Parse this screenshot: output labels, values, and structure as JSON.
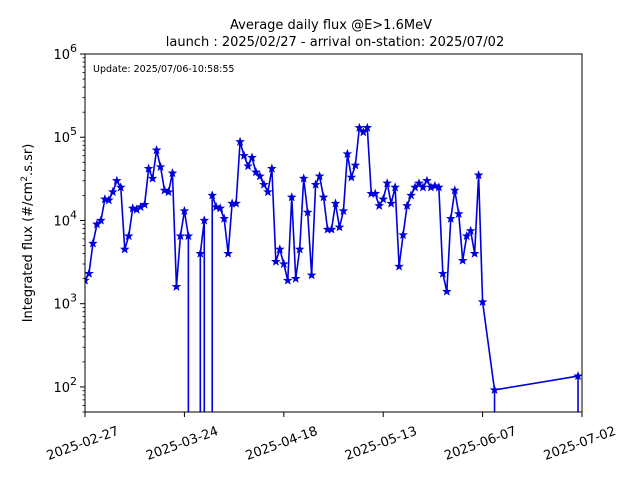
{
  "chart_data": {
    "type": "line",
    "title": "Average daily flux @E>1.6MeV",
    "subtitle": "launch : 2025/02/27 - arrival on-station: 2025/07/02",
    "ylabel_prefix": "Integrated flux (#/cm",
    "ylabel_sup": "2",
    "ylabel_suffix": ".s.sr)",
    "annotation": "Update: 2025/07/06-10:58:55",
    "y_scale": "log",
    "ylim": [
      50,
      1000000
    ],
    "xlim": [
      "2025-02-27",
      "2025-07-02"
    ],
    "x_ticks": [
      "2025-02-27",
      "2025-03-24",
      "2025-04-18",
      "2025-05-13",
      "2025-06-07",
      "2025-07-02"
    ],
    "y_ticks": [
      {
        "value": 100,
        "base": "10",
        "exp": "2"
      },
      {
        "value": 1000,
        "base": "10",
        "exp": "3"
      },
      {
        "value": 10000,
        "base": "10",
        "exp": "4"
      },
      {
        "value": 100000,
        "base": "10",
        "exp": "5"
      },
      {
        "value": 1000000,
        "base": "10",
        "exp": "6"
      }
    ],
    "line_color": "#0000dd",
    "series": [
      {
        "x": [
          "2025-02-27",
          "2025-02-28",
          "2025-03-01",
          "2025-03-02",
          "2025-03-03",
          "2025-03-04",
          "2025-03-05",
          "2025-03-06",
          "2025-03-07",
          "2025-03-08",
          "2025-03-09",
          "2025-03-10",
          "2025-03-11",
          "2025-03-12",
          "2025-03-13",
          "2025-03-14",
          "2025-03-15",
          "2025-03-16",
          "2025-03-17",
          "2025-03-18",
          "2025-03-19",
          "2025-03-20",
          "2025-03-21",
          "2025-03-22",
          "2025-03-23",
          "2025-03-24",
          "2025-03-25",
          "2025-03-26",
          "2025-03-27",
          "2025-03-28",
          "2025-03-29",
          "2025-03-30",
          "2025-03-31",
          "2025-04-01",
          "2025-04-02",
          "2025-04-03",
          "2025-04-04",
          "2025-04-05",
          "2025-04-06",
          "2025-04-07",
          "2025-04-08",
          "2025-04-09",
          "2025-04-10",
          "2025-04-11",
          "2025-04-12",
          "2025-04-13",
          "2025-04-14",
          "2025-04-15",
          "2025-04-16",
          "2025-04-17",
          "2025-04-18",
          "2025-04-19",
          "2025-04-20",
          "2025-04-21",
          "2025-04-22",
          "2025-04-23",
          "2025-04-24",
          "2025-04-25",
          "2025-04-26",
          "2025-04-27",
          "2025-04-28",
          "2025-04-29",
          "2025-04-30",
          "2025-05-01",
          "2025-05-02",
          "2025-05-03",
          "2025-05-04",
          "2025-05-05",
          "2025-05-06",
          "2025-05-07",
          "2025-05-08",
          "2025-05-09",
          "2025-05-10",
          "2025-05-11",
          "2025-05-12",
          "2025-05-13",
          "2025-05-14",
          "2025-05-15",
          "2025-05-16",
          "2025-05-17",
          "2025-05-18",
          "2025-05-19",
          "2025-05-20",
          "2025-05-21",
          "2025-05-22",
          "2025-05-23",
          "2025-05-24",
          "2025-05-25",
          "2025-05-26",
          "2025-05-27",
          "2025-05-28",
          "2025-05-29",
          "2025-05-30",
          "2025-05-31",
          "2025-06-01",
          "2025-06-02",
          "2025-06-03",
          "2025-06-04",
          "2025-06-05",
          "2025-06-06",
          "2025-06-07",
          "2025-06-10",
          "2025-07-01"
        ],
        "y": [
          1900,
          2300,
          5300,
          9000,
          10000,
          18000,
          17500,
          22000,
          30000,
          25000,
          4500,
          6500,
          14000,
          13500,
          14500,
          15500,
          42000,
          32000,
          70000,
          44000,
          23000,
          22000,
          37000,
          1600,
          6500,
          13000,
          6500,
          null,
          null,
          4000,
          10000,
          null,
          20000,
          14500,
          14000,
          10500,
          4000,
          16000,
          16000,
          88000,
          60000,
          45000,
          57000,
          38000,
          34000,
          27000,
          22000,
          42000,
          3200,
          4500,
          3000,
          1900,
          19000,
          2000,
          4500,
          32000,
          12500,
          2200,
          27000,
          34000,
          19000,
          7800,
          7800,
          16000,
          8300,
          13000,
          63000,
          33000,
          46000,
          130000,
          115000,
          130000,
          21000,
          21000,
          15000,
          18000,
          28000,
          16000,
          25000,
          2800,
          6700,
          15000,
          20000,
          25000,
          28000,
          25000,
          30000,
          25000,
          26000,
          25000,
          2300,
          1400,
          10500,
          23000,
          12000,
          3300,
          6500,
          7500,
          4000,
          35000,
          1050,
          92,
          135
        ]
      }
    ]
  }
}
